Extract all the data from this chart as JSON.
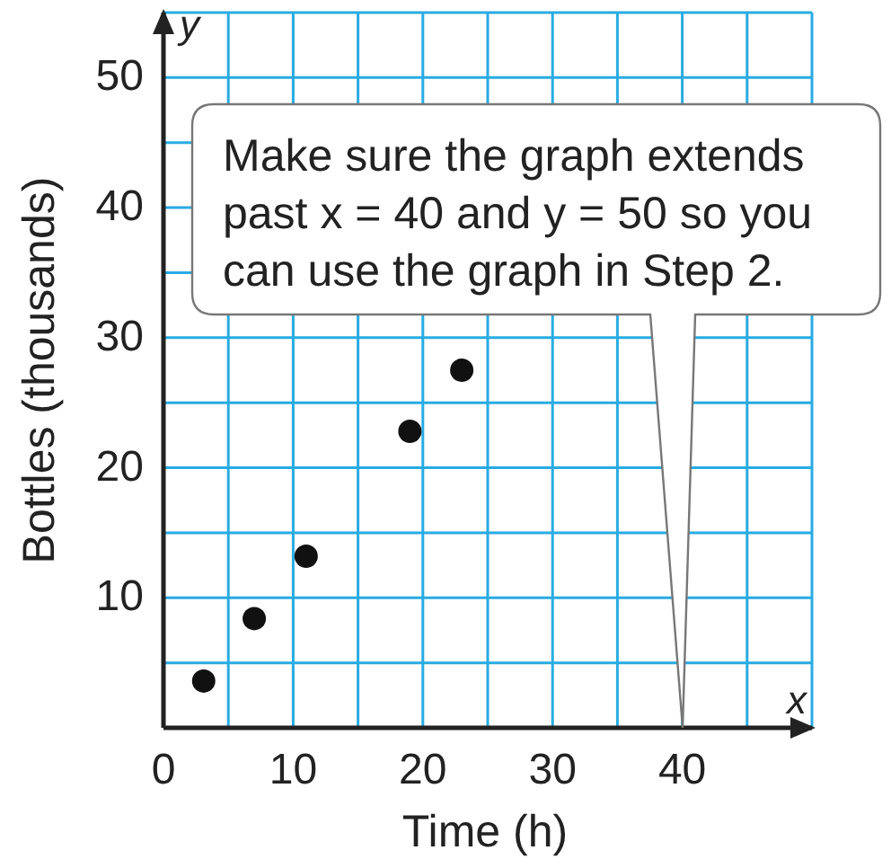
{
  "chart_data": {
    "type": "scatter",
    "xlabel": "Time (h)",
    "ylabel": "Bottles (thousands)",
    "series": [
      {
        "color": "#111111",
        "x": [
          3.1,
          7,
          11,
          19,
          23
        ],
        "values": [
          3.6,
          8.4,
          13.2,
          22.8,
          27.5
        ]
      }
    ],
    "xlim": [
      0,
      50
    ],
    "ylim": [
      0,
      55
    ],
    "xticks": [
      0,
      {
        "value": 5,
        "label": null
      },
      10,
      {
        "value": 15,
        "label": null
      },
      20,
      {
        "value": 25,
        "label": null
      },
      30,
      {
        "value": 35,
        "label": null
      },
      40,
      {
        "value": 45,
        "label": null
      },
      {
        "value": 50,
        "label": null
      }
    ],
    "yticks": [
      {
        "value": 5,
        "label": null
      },
      10,
      {
        "value": 15,
        "label": null
      },
      20,
      {
        "value": 25,
        "label": null
      },
      30,
      {
        "value": 35,
        "label": null
      },
      40,
      {
        "value": 45,
        "label": null
      },
      50,
      {
        "value": 55,
        "label": null
      }
    ],
    "grid": true,
    "marker": "circle",
    "annotations": [
      "y",
      "x",
      "Make sure the graph extends\npast x = 40 and y = 50 so you\ncan use the graph in Step 2."
    ]
  }
}
